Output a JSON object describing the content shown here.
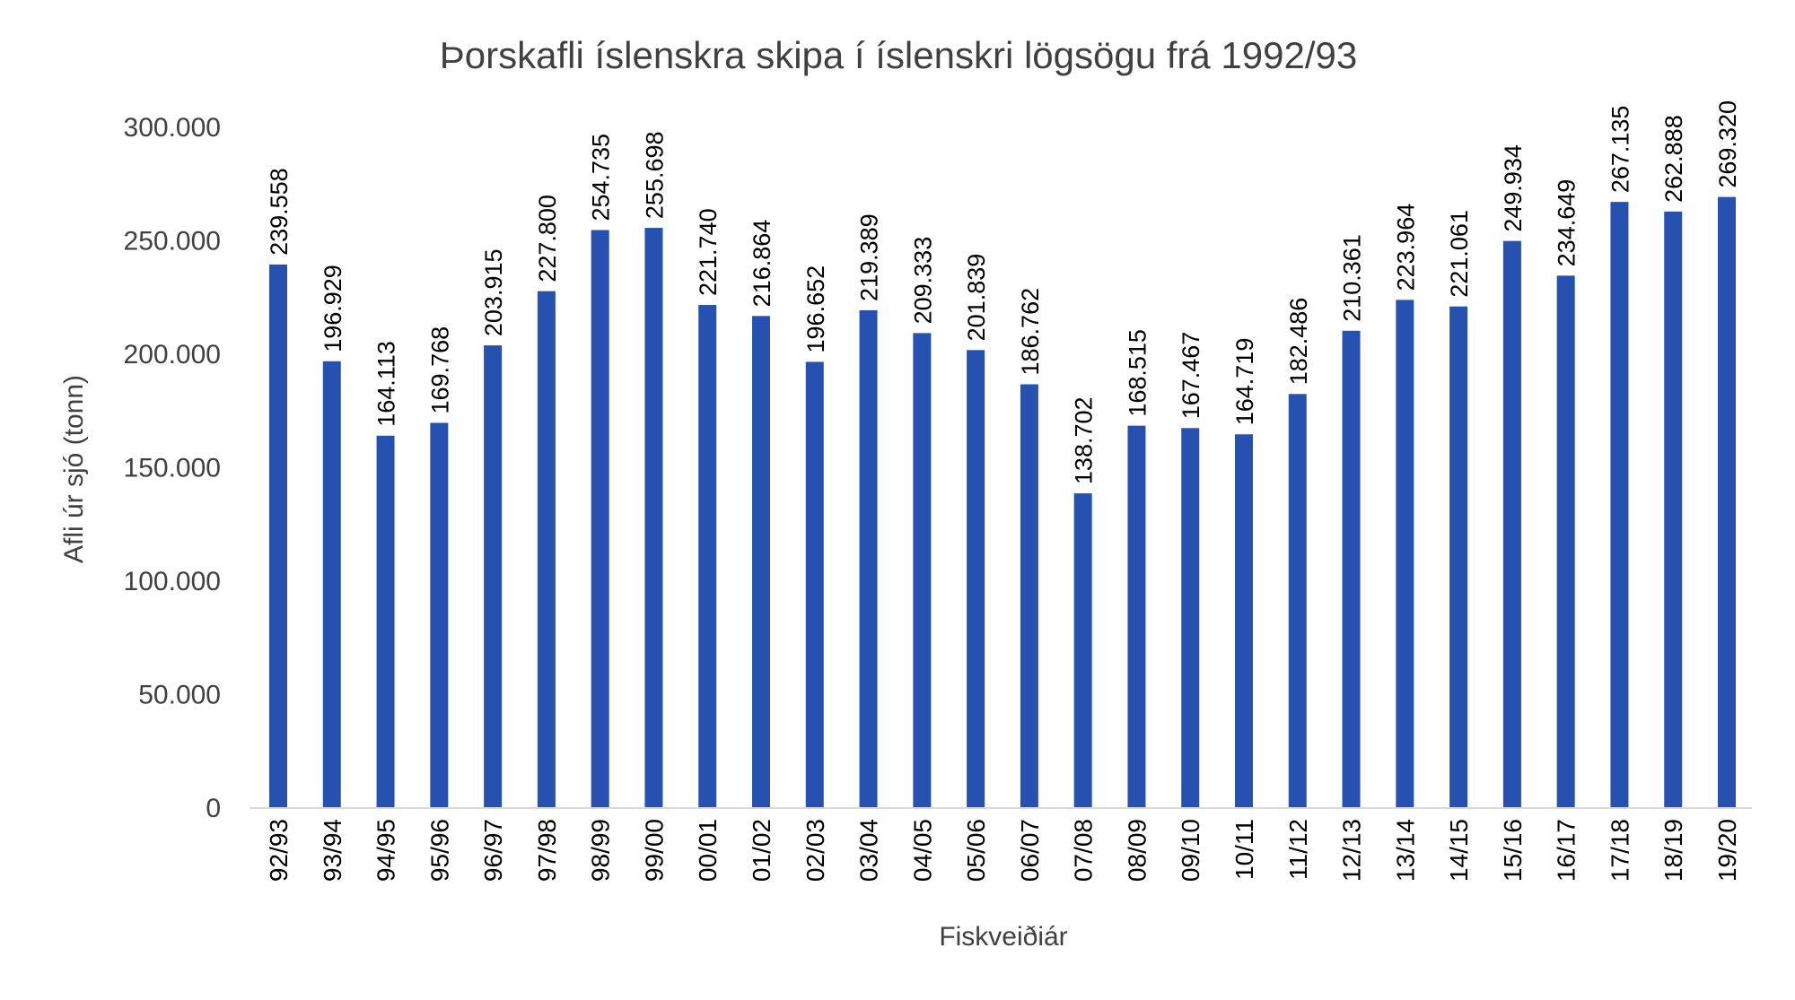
{
  "chart_data": {
    "type": "bar",
    "title": "Þorskafli íslenskra skipa í íslenskri lögsögu frá 1992/93",
    "xlabel": "Fiskveiðiár",
    "ylabel": "Afli úr sjó (tonn)",
    "ylim": [
      0,
      300000
    ],
    "yticks": [
      0,
      50000,
      100000,
      150000,
      200000,
      250000,
      300000
    ],
    "ytick_labels": [
      "0",
      "50.000",
      "100.000",
      "150.000",
      "200.000",
      "250.000",
      "300.000"
    ],
    "grid": false,
    "bar_color": "#2751b0",
    "categories": [
      "92/93",
      "93/94",
      "94/95",
      "95/96",
      "96/97",
      "97/98",
      "98/99",
      "99/00",
      "00/01",
      "01/02",
      "02/03",
      "03/04",
      "04/05",
      "05/06",
      "06/07",
      "07/08",
      "08/09",
      "09/10",
      "10/11",
      "11/12",
      "12/13",
      "13/14",
      "14/15",
      "15/16",
      "16/17",
      "17/18",
      "18/19",
      "19/20"
    ],
    "values": [
      239558,
      196929,
      164113,
      169768,
      203915,
      227800,
      254735,
      255698,
      221740,
      216864,
      196652,
      219389,
      209333,
      201839,
      186762,
      138702,
      168515,
      167467,
      164719,
      182486,
      210361,
      223964,
      221061,
      249934,
      234649,
      267135,
      262888,
      269320
    ],
    "data_labels": [
      "239.558",
      "196.929",
      "164.113",
      "169.768",
      "203.915",
      "227.800",
      "254.735",
      "255.698",
      "221.740",
      "216.864",
      "196.652",
      "219.389",
      "209.333",
      "201.839",
      "186.762",
      "138.702",
      "168.515",
      "167.467",
      "164.719",
      "182.486",
      "210.361",
      "223.964",
      "221.061",
      "249.934",
      "234.649",
      "267.135",
      "262.888",
      "269.320"
    ]
  }
}
